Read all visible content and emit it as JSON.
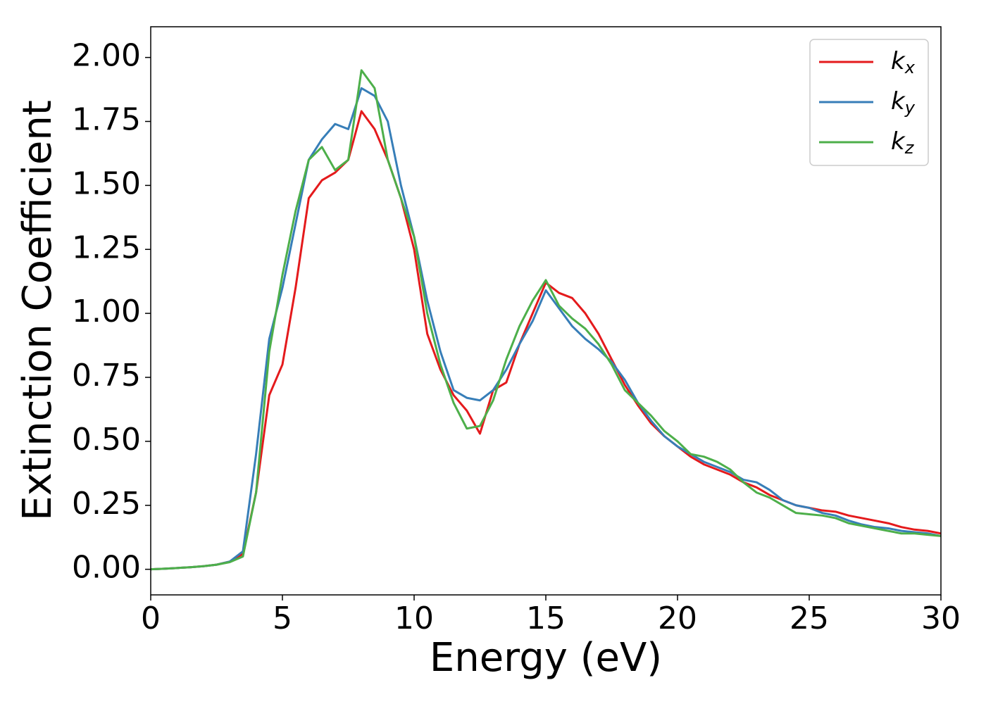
{
  "chart_data": {
    "type": "line",
    "xlabel": "Energy (eV)",
    "ylabel": "Extinction Coefficient",
    "x": [
      0,
      0.5,
      1,
      1.5,
      2,
      2.5,
      3,
      3.5,
      4,
      4.5,
      5,
      5.5,
      6,
      6.5,
      7,
      7.5,
      8,
      8.5,
      9,
      9.5,
      10,
      10.5,
      11,
      11.5,
      12,
      12.5,
      13,
      13.5,
      14,
      14.5,
      15,
      15.5,
      16,
      16.5,
      17,
      17.5,
      18,
      18.5,
      19,
      19.5,
      20,
      20.5,
      21,
      21.5,
      22,
      22.5,
      23,
      23.5,
      24,
      24.5,
      25,
      25.5,
      26,
      26.5,
      27,
      27.5,
      28,
      28.5,
      29,
      29.5,
      30
    ],
    "series": [
      {
        "name": "kx",
        "color": "#e41a1c",
        "values": [
          0,
          0.002,
          0.005,
          0.008,
          0.012,
          0.018,
          0.03,
          0.06,
          0.3,
          0.68,
          0.8,
          1.1,
          1.45,
          1.52,
          1.55,
          1.6,
          1.79,
          1.72,
          1.6,
          1.45,
          1.25,
          0.92,
          0.78,
          0.68,
          0.62,
          0.53,
          0.7,
          0.73,
          0.88,
          1.0,
          1.12,
          1.08,
          1.06,
          1.0,
          0.92,
          0.82,
          0.72,
          0.64,
          0.57,
          0.52,
          0.48,
          0.44,
          0.41,
          0.39,
          0.37,
          0.34,
          0.32,
          0.29,
          0.27,
          0.25,
          0.24,
          0.23,
          0.225,
          0.21,
          0.2,
          0.19,
          0.18,
          0.165,
          0.155,
          0.15,
          0.14
        ]
      },
      {
        "name": "ky",
        "color": "#377eb8",
        "values": [
          0,
          0.002,
          0.005,
          0.008,
          0.012,
          0.018,
          0.03,
          0.07,
          0.45,
          0.9,
          1.1,
          1.35,
          1.6,
          1.68,
          1.74,
          1.72,
          1.88,
          1.85,
          1.75,
          1.5,
          1.3,
          1.05,
          0.85,
          0.7,
          0.67,
          0.66,
          0.7,
          0.78,
          0.88,
          0.97,
          1.09,
          1.02,
          0.95,
          0.9,
          0.86,
          0.81,
          0.74,
          0.65,
          0.58,
          0.52,
          0.48,
          0.45,
          0.42,
          0.4,
          0.38,
          0.35,
          0.34,
          0.31,
          0.27,
          0.25,
          0.24,
          0.22,
          0.21,
          0.19,
          0.175,
          0.165,
          0.16,
          0.15,
          0.145,
          0.14,
          0.13
        ]
      },
      {
        "name": "kz",
        "color": "#4daf4a",
        "values": [
          0,
          0.002,
          0.005,
          0.008,
          0.012,
          0.018,
          0.028,
          0.05,
          0.3,
          0.85,
          1.15,
          1.4,
          1.6,
          1.65,
          1.56,
          1.6,
          1.95,
          1.88,
          1.6,
          1.45,
          1.3,
          1.0,
          0.8,
          0.65,
          0.55,
          0.56,
          0.66,
          0.82,
          0.95,
          1.05,
          1.13,
          1.03,
          0.98,
          0.94,
          0.88,
          0.8,
          0.7,
          0.65,
          0.6,
          0.54,
          0.5,
          0.45,
          0.44,
          0.42,
          0.39,
          0.34,
          0.3,
          0.28,
          0.25,
          0.22,
          0.215,
          0.21,
          0.2,
          0.18,
          0.17,
          0.16,
          0.15,
          0.14,
          0.14,
          0.135,
          0.13
        ]
      }
    ],
    "xlim": [
      0,
      30
    ],
    "xticks": [
      0,
      5,
      10,
      15,
      20,
      25,
      30
    ],
    "ylim": [
      -0.1,
      2.12
    ],
    "yticks": [
      {
        "value": 0,
        "label": "0.00"
      },
      {
        "value": 0.25,
        "label": "0.25"
      },
      {
        "value": 0.5,
        "label": "0.50"
      },
      {
        "value": 0.75,
        "label": "0.75"
      },
      {
        "value": 1,
        "label": "1.00"
      },
      {
        "value": 1.25,
        "label": "1.25"
      },
      {
        "value": 1.5,
        "label": "1.50"
      },
      {
        "value": 1.75,
        "label": "1.75"
      },
      {
        "value": 2,
        "label": "2.00"
      }
    ],
    "legend": "upper right",
    "grid": false
  }
}
